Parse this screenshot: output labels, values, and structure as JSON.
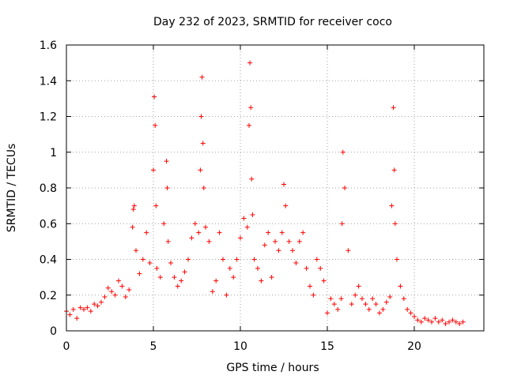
{
  "chart_data": {
    "type": "scatter",
    "title": "Day 232 of 2023, SRMTID for receiver coco",
    "xlabel": "GPS time / hours",
    "ylabel": "SRMTID / TECUs",
    "xlim": [
      0,
      24
    ],
    "ylim": [
      0,
      1.6
    ],
    "xticks": [
      0,
      5,
      10,
      15,
      20
    ],
    "xtick_labels": [
      "0",
      "5",
      "10",
      "15",
      "20"
    ],
    "yticks": [
      0,
      0.2,
      0.4,
      0.6,
      0.8,
      1.0,
      1.2,
      1.4,
      1.6
    ],
    "ytick_labels": [
      "0",
      "0.2",
      "0.4",
      "0.6",
      "0.8",
      "1",
      "1.2",
      "1.4",
      "1.6"
    ],
    "grid": true,
    "marker": "plus",
    "series": [
      {
        "name": "SRMTID",
        "color": "#ff0000",
        "x": [
          0.0,
          0.2,
          0.4,
          0.6,
          0.8,
          1.0,
          1.2,
          1.4,
          1.6,
          1.8,
          2.0,
          2.2,
          2.4,
          2.6,
          2.8,
          3.0,
          3.2,
          3.4,
          3.6,
          3.8,
          3.85,
          3.9,
          4.0,
          4.2,
          4.4,
          4.6,
          4.8,
          5.0,
          5.05,
          5.1,
          5.15,
          5.2,
          5.4,
          5.6,
          5.75,
          5.8,
          5.85,
          6.0,
          6.2,
          6.4,
          6.6,
          6.8,
          7.0,
          7.2,
          7.4,
          7.6,
          7.7,
          7.75,
          7.8,
          7.85,
          7.9,
          8.0,
          8.2,
          8.4,
          8.6,
          8.8,
          9.0,
          9.2,
          9.4,
          9.6,
          9.8,
          10.0,
          10.2,
          10.4,
          10.5,
          10.55,
          10.6,
          10.65,
          10.7,
          10.8,
          11.0,
          11.2,
          11.4,
          11.6,
          11.8,
          12.0,
          12.2,
          12.4,
          12.5,
          12.6,
          12.8,
          13.0,
          13.2,
          13.4,
          13.6,
          13.8,
          14.0,
          14.2,
          14.4,
          14.6,
          14.8,
          15.0,
          15.2,
          15.4,
          15.6,
          15.8,
          15.85,
          15.9,
          16.0,
          16.2,
          16.4,
          16.6,
          16.8,
          17.0,
          17.2,
          17.4,
          17.6,
          17.8,
          18.0,
          18.2,
          18.4,
          18.6,
          18.7,
          18.8,
          18.85,
          18.9,
          19.0,
          19.2,
          19.4,
          19.6,
          19.8,
          20.0,
          20.2,
          20.4,
          20.6,
          20.8,
          21.0,
          21.2,
          21.4,
          21.6,
          21.8,
          22.0,
          22.2,
          22.4,
          22.6,
          22.8
        ],
        "y": [
          0.11,
          0.09,
          0.12,
          0.07,
          0.13,
          0.12,
          0.13,
          0.11,
          0.15,
          0.14,
          0.16,
          0.19,
          0.24,
          0.22,
          0.2,
          0.28,
          0.25,
          0.19,
          0.23,
          0.58,
          0.68,
          0.7,
          0.45,
          0.32,
          0.4,
          0.55,
          0.38,
          0.9,
          1.31,
          1.15,
          0.7,
          0.35,
          0.3,
          0.6,
          0.95,
          0.8,
          0.5,
          0.38,
          0.3,
          0.25,
          0.28,
          0.33,
          0.4,
          0.52,
          0.6,
          0.55,
          0.9,
          1.2,
          1.42,
          1.05,
          0.8,
          0.58,
          0.5,
          0.22,
          0.28,
          0.55,
          0.4,
          0.2,
          0.35,
          0.3,
          0.4,
          0.52,
          0.63,
          0.58,
          1.15,
          1.5,
          1.25,
          0.85,
          0.65,
          0.4,
          0.35,
          0.28,
          0.48,
          0.55,
          0.3,
          0.5,
          0.45,
          0.55,
          0.82,
          0.7,
          0.5,
          0.45,
          0.38,
          0.5,
          0.55,
          0.35,
          0.25,
          0.2,
          0.4,
          0.35,
          0.28,
          0.1,
          0.18,
          0.15,
          0.12,
          0.18,
          0.6,
          1.0,
          0.8,
          0.45,
          0.15,
          0.2,
          0.25,
          0.18,
          0.15,
          0.12,
          0.18,
          0.15,
          0.1,
          0.12,
          0.16,
          0.19,
          0.7,
          1.25,
          0.9,
          0.6,
          0.4,
          0.25,
          0.18,
          0.12,
          0.1,
          0.08,
          0.06,
          0.05,
          0.07,
          0.06,
          0.05,
          0.07,
          0.05,
          0.06,
          0.04,
          0.05,
          0.06,
          0.05,
          0.04,
          0.05
        ]
      }
    ]
  }
}
